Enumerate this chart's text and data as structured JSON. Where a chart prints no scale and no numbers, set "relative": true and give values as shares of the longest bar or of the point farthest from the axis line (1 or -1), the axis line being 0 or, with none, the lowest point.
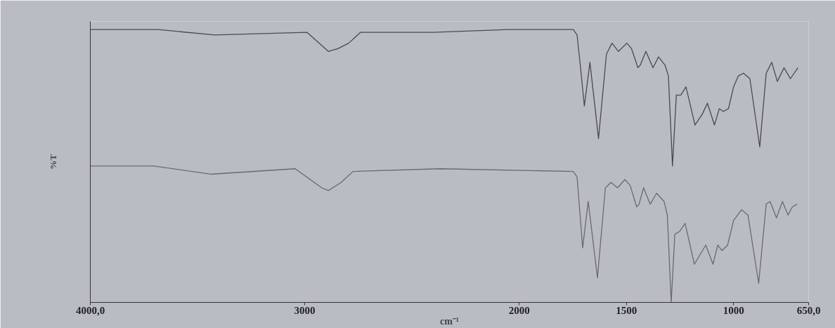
{
  "chart_data": {
    "type": "line",
    "relative": true,
    "xlabel": "cm⁻¹",
    "ylabel": "%T",
    "xlim": [
      4000,
      650
    ],
    "xticks": [
      {
        "value": 4000,
        "label": "4000,0"
      },
      3000,
      2000,
      1500,
      1000,
      {
        "value": 650,
        "label": "650,0"
      }
    ],
    "line_style": "solid",
    "series": [
      {
        "color": "#4a4a4a",
        "x": [
          4000,
          3685,
          3420,
          2990,
          2890,
          2845,
          2795,
          2740,
          2400,
          2050,
          1880,
          1748,
          1730,
          1715,
          1696,
          1670,
          1630,
          1593,
          1567,
          1537,
          1498,
          1476,
          1446,
          1435,
          1409,
          1376,
          1350,
          1320,
          1304,
          1285,
          1267,
          1246,
          1222,
          1180,
          1146,
          1122,
          1089,
          1067,
          1048,
          1024,
          1000,
          978,
          954,
          924,
          878,
          848,
          822,
          796,
          765,
          735,
          700
        ],
        "values": [
          1.0,
          1.0,
          0.98,
          0.99,
          0.92,
          0.93,
          0.95,
          0.99,
          0.99,
          1.0,
          1.0,
          1.0,
          0.98,
          0.87,
          0.72,
          0.88,
          0.6,
          0.91,
          0.95,
          0.92,
          0.95,
          0.93,
          0.86,
          0.87,
          0.92,
          0.86,
          0.9,
          0.87,
          0.83,
          0.5,
          0.76,
          0.76,
          0.79,
          0.65,
          0.69,
          0.73,
          0.65,
          0.71,
          0.7,
          0.71,
          0.79,
          0.83,
          0.84,
          0.82,
          0.57,
          0.84,
          0.88,
          0.81,
          0.86,
          0.82,
          0.86
        ]
      },
      {
        "color": "#6a6a6a",
        "x": [
          4000,
          3705,
          3435,
          3045,
          2920,
          2890,
          2830,
          2775,
          2365,
          1748,
          1730,
          1704,
          1678,
          1635,
          1598,
          1572,
          1541,
          1507,
          1483,
          1452,
          1441,
          1420,
          1389,
          1359,
          1324,
          1309,
          1291,
          1274,
          1252,
          1226,
          1183,
          1130,
          1096,
          1074,
          1054,
          1028,
          1000,
          963,
          933,
          883,
          848,
          830,
          800,
          772,
          746,
          726,
          704
        ],
        "values": [
          0.5,
          0.5,
          0.47,
          0.49,
          0.42,
          0.41,
          0.44,
          0.48,
          0.49,
          0.48,
          0.46,
          0.2,
          0.37,
          0.09,
          0.42,
          0.44,
          0.42,
          0.45,
          0.43,
          0.35,
          0.36,
          0.42,
          0.36,
          0.4,
          0.37,
          0.32,
          0.0,
          0.25,
          0.26,
          0.29,
          0.14,
          0.21,
          0.14,
          0.21,
          0.19,
          0.21,
          0.3,
          0.34,
          0.32,
          0.07,
          0.36,
          0.37,
          0.31,
          0.37,
          0.32,
          0.35,
          0.36
        ]
      }
    ]
  }
}
